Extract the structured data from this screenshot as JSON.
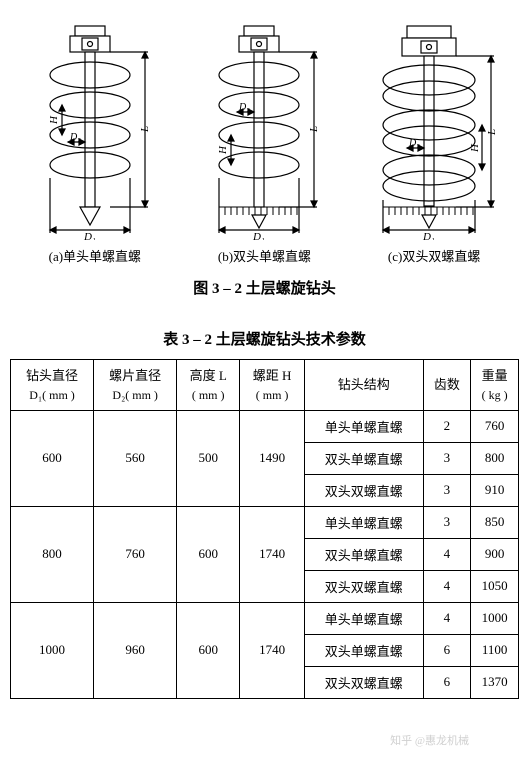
{
  "diagrams": {
    "labels": [
      "D₁",
      "D₂",
      "H",
      "L"
    ],
    "captions": {
      "a": "(a)单头单螺直螺",
      "b": "(b)双头单螺直螺",
      "c": "(c)双头双螺直螺"
    },
    "stroke_color": "#000000",
    "bg_color": "#ffffff"
  },
  "figure_title": "图 3 – 2   土层螺旋钻头",
  "table_title": "表 3 – 2   土层螺旋钻头技术参数",
  "table": {
    "headers": [
      {
        "line1": "钻头直径",
        "line2": "D₁( mm )"
      },
      {
        "line1": "螺片直径",
        "line2": "D₂( mm )"
      },
      {
        "line1": "高度 L",
        "line2": "( mm )"
      },
      {
        "line1": "螺距 H",
        "line2": "( mm )"
      },
      {
        "line1": "钻头结构",
        "line2": ""
      },
      {
        "line1": "齿数",
        "line2": ""
      },
      {
        "line1": "重量",
        "line2": "( kg )"
      }
    ],
    "groups": [
      {
        "d1": "600",
        "d2": "560",
        "height_l": "500",
        "pitch_h": "1490",
        "rows": [
          {
            "structure": "单头单螺直螺",
            "teeth": "2",
            "weight": "760"
          },
          {
            "structure": "双头单螺直螺",
            "teeth": "3",
            "weight": "800"
          },
          {
            "structure": "双头双螺直螺",
            "teeth": "3",
            "weight": "910"
          }
        ]
      },
      {
        "d1": "800",
        "d2": "760",
        "height_l": "600",
        "pitch_h": "1740",
        "rows": [
          {
            "structure": "单头单螺直螺",
            "teeth": "3",
            "weight": "850"
          },
          {
            "structure": "双头单螺直螺",
            "teeth": "4",
            "weight": "900"
          },
          {
            "structure": "双头双螺直螺",
            "teeth": "4",
            "weight": "1050"
          }
        ]
      },
      {
        "d1": "1000",
        "d2": "960",
        "height_l": "600",
        "pitch_h": "1740",
        "rows": [
          {
            "structure": "单头单螺直螺",
            "teeth": "4",
            "weight": "1000"
          },
          {
            "structure": "双头单螺直螺",
            "teeth": "6",
            "weight": "1100"
          },
          {
            "structure": "双头双螺直螺",
            "teeth": "6",
            "weight": "1370"
          }
        ]
      }
    ]
  },
  "watermark": "知乎 @惠龙机械"
}
